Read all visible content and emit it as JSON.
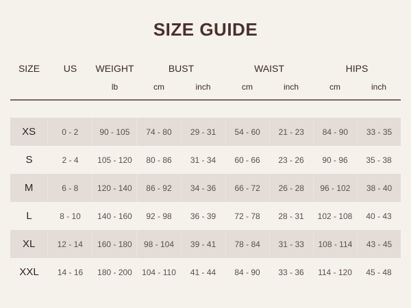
{
  "title": "SIZE GUIDE",
  "headers": [
    "SIZE",
    "US",
    "WEIGHT",
    "BUST",
    "WAIST",
    "HIPS"
  ],
  "subheaders": [
    "lb",
    "cm",
    "inch",
    "cm",
    "inch",
    "cm",
    "inch"
  ],
  "rows": [
    [
      "XS",
      "0 - 2",
      "90 - 105",
      "74 - 80",
      "29 - 31",
      "54 - 60",
      "21 - 23",
      "84 - 90",
      "33 - 35"
    ],
    [
      "S",
      "2 - 4",
      "105 - 120",
      "80 - 86",
      "31 - 34",
      "60 - 66",
      "23 - 26",
      "90 - 96",
      "35 - 38"
    ],
    [
      "M",
      "6 - 8",
      "120 - 140",
      "86 - 92",
      "34 - 36",
      "66 - 72",
      "26 - 28",
      "96 - 102",
      "38 - 40"
    ],
    [
      "L",
      "8 - 10",
      "140 - 160",
      "92 - 98",
      "36 - 39",
      "72 - 78",
      "28 - 31",
      "102 - 108",
      "40 - 43"
    ],
    [
      "XL",
      "12 - 14",
      "160 - 180",
      "98 - 104",
      "39 - 41",
      "78 - 84",
      "31 - 33",
      "108 - 114",
      "43 - 45"
    ],
    [
      "XXL",
      "14 - 16",
      "180 - 200",
      "104 - 110",
      "41 - 44",
      "84 - 90",
      "33 - 36",
      "114 - 120",
      "45 - 48"
    ]
  ],
  "colors": {
    "background": "#f5f1eb",
    "shaded_row": "#e4ddd7",
    "title": "#4a2f2a"
  }
}
